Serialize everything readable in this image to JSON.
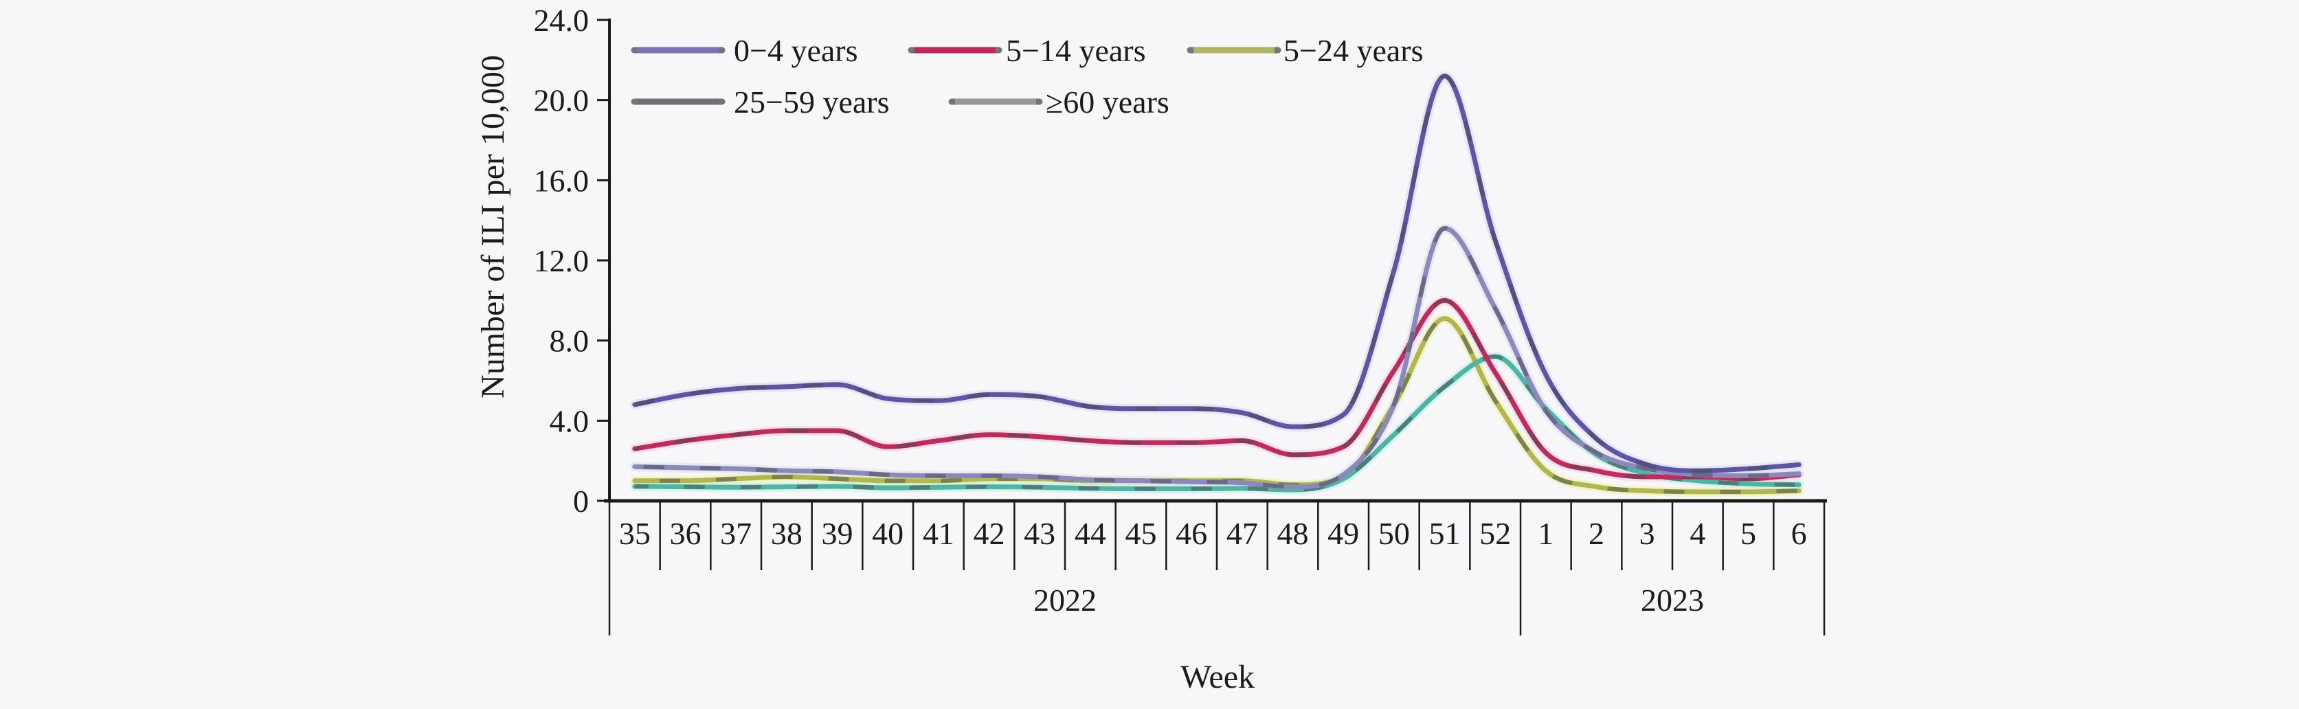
{
  "figure": {
    "background": "#f7f7fa",
    "text_color": "#1b1b1b",
    "y_axis_title": "Number of ILI per 10,000",
    "x_axis_title": "Week"
  },
  "chart_data": {
    "type": "line",
    "title": "",
    "xlabel": "Week",
    "ylabel": "Number of ILI per 10,000",
    "ylim": [
      0,
      24
    ],
    "grid": false,
    "legend_position": "top-left, two rows",
    "y_ticks": [
      {
        "value": 0,
        "label": "0"
      },
      {
        "value": 4,
        "label": "4.0"
      },
      {
        "value": 8,
        "label": "8.0"
      },
      {
        "value": 12,
        "label": "12.0"
      },
      {
        "value": 16,
        "label": "16.0"
      },
      {
        "value": 20,
        "label": "20.0"
      },
      {
        "value": 24,
        "label": "24.0"
      }
    ],
    "x_categories": [
      "35",
      "36",
      "37",
      "38",
      "39",
      "40",
      "41",
      "42",
      "43",
      "44",
      "45",
      "46",
      "47",
      "48",
      "49",
      "50",
      "51",
      "52",
      "1",
      "2",
      "3",
      "4",
      "5",
      "6"
    ],
    "x_year_groups": [
      {
        "label": "2022",
        "n_weeks": 18
      },
      {
        "label": "2023",
        "n_weeks": 6
      }
    ],
    "series": [
      {
        "name": "0−4 years",
        "line_color": "#5d56a6",
        "halo_color": "#ddd7ef",
        "legend_color": "#7b73b6",
        "values": [
          4.8,
          5.3,
          5.6,
          5.7,
          5.8,
          5.1,
          5.0,
          5.3,
          5.2,
          4.7,
          4.6,
          4.6,
          4.4,
          3.7,
          4.3,
          11.5,
          21.2,
          13.0,
          6.3,
          3.1,
          1.8,
          1.5,
          1.6,
          1.8
        ]
      },
      {
        "name": "5−14 years",
        "line_color": "#c12a5f",
        "halo_color": "#f4cfde",
        "legend_color": "#c2255c",
        "values": [
          2.6,
          3.0,
          3.3,
          3.5,
          3.5,
          2.7,
          3.0,
          3.3,
          3.2,
          3.0,
          2.9,
          2.9,
          3.0,
          2.3,
          2.7,
          6.5,
          10.0,
          6.4,
          2.4,
          1.5,
          1.2,
          1.2,
          1.1,
          1.3
        ]
      },
      {
        "name": "5−24 years",
        "line_color": "#b0b74d",
        "halo_color": "#eff3ac",
        "legend_color": "#aeb562",
        "values": [
          1.0,
          1.0,
          1.1,
          1.2,
          1.1,
          1.0,
          1.0,
          1.1,
          1.1,
          1.0,
          1.0,
          1.0,
          1.0,
          0.8,
          1.2,
          4.8,
          9.1,
          5.0,
          1.5,
          0.7,
          0.5,
          0.45,
          0.45,
          0.5
        ]
      },
      {
        "name": "25−59 years",
        "line_color": "#8b88bb",
        "halo_color": "#dadeef",
        "legend_color": "#6f6f73",
        "values": [
          1.7,
          1.65,
          1.6,
          1.5,
          1.45,
          1.3,
          1.25,
          1.25,
          1.2,
          1.05,
          1.0,
          0.95,
          0.9,
          0.7,
          1.3,
          4.8,
          13.6,
          9.6,
          4.5,
          2.4,
          1.6,
          1.3,
          1.25,
          1.35
        ]
      },
      {
        "name": "≥60 years",
        "line_color": "#4eb5a2",
        "halo_color": "#c4ede5",
        "legend_color": "#97979a",
        "values": [
          0.72,
          0.7,
          0.68,
          0.7,
          0.72,
          0.65,
          0.68,
          0.7,
          0.68,
          0.62,
          0.6,
          0.6,
          0.62,
          0.55,
          1.1,
          3.3,
          5.7,
          7.2,
          4.6,
          2.3,
          1.35,
          1.0,
          0.85,
          0.8
        ]
      }
    ]
  }
}
